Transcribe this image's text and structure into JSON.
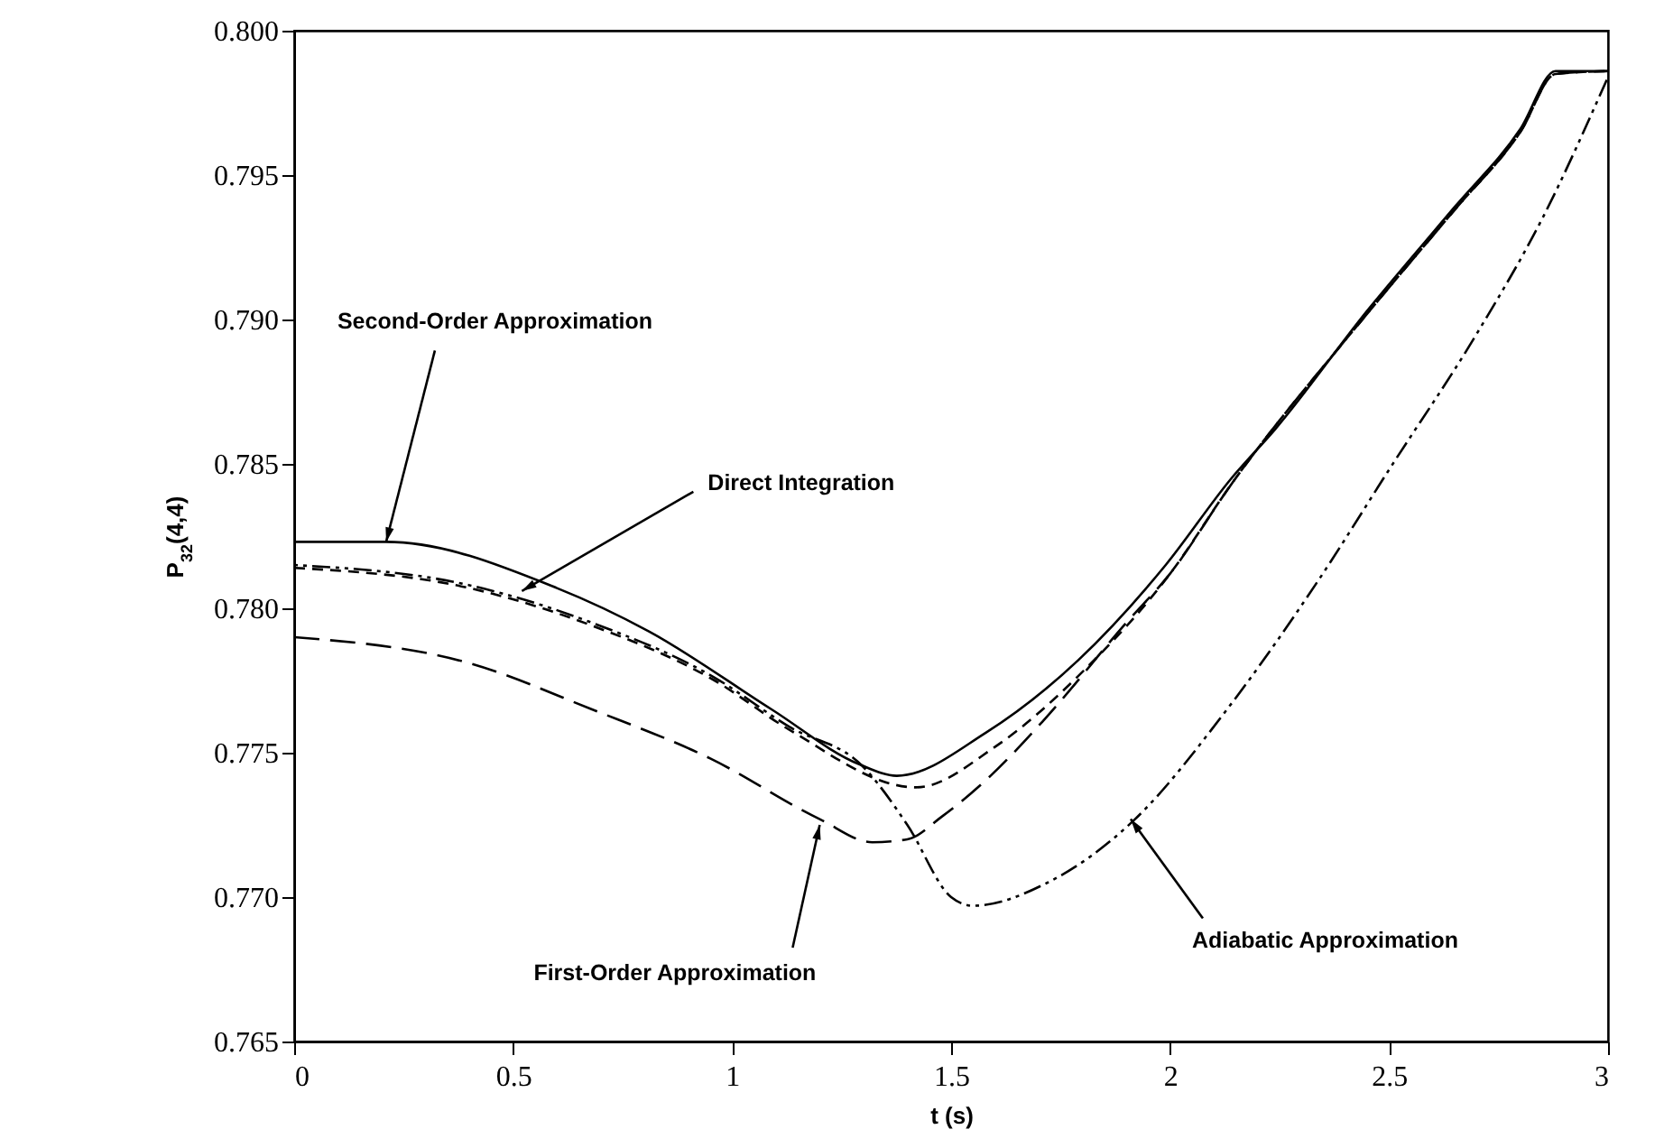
{
  "chart_data": {
    "type": "line",
    "xlabel": "t (s)",
    "ylabel": "P$_{32}$(4,4)",
    "xlim": [
      0,
      3
    ],
    "ylim": [
      0.765,
      0.8
    ],
    "xticks": [
      0,
      0.5,
      1,
      1.5,
      2,
      2.5,
      3
    ],
    "yticks": [
      {
        "value": 0.765,
        "label": "0.765"
      },
      {
        "value": 0.77,
        "label": "0.770"
      },
      {
        "value": 0.775,
        "label": "0.775"
      },
      {
        "value": 0.78,
        "label": "0.780"
      },
      {
        "value": 0.785,
        "label": "0.785"
      },
      {
        "value": 0.79,
        "label": "0.790"
      },
      {
        "value": 0.795,
        "label": "0.795"
      },
      {
        "value": 0.8,
        "label": "0.800"
      }
    ],
    "grid": false,
    "series": [
      {
        "color": "#000000",
        "line_style": "solid",
        "x": [
          0,
          0.21,
          0.6,
          0.81,
          1.09,
          1.29,
          1.376,
          1.58,
          1.79,
          1.99,
          2.14,
          2.24,
          2.45,
          2.65,
          2.8,
          2.88,
          3
        ],
        "values": [
          0.7823,
          0.7823,
          0.7807,
          0.7792,
          0.7765,
          0.7746,
          0.7742,
          0.7757,
          0.7782,
          0.7815,
          0.7845,
          0.7862,
          0.7903,
          0.7939,
          0.7966,
          0.7986,
          0.7986
        ]
      },
      {
        "color": "#000000",
        "line_style": "dashed",
        "x": [
          0,
          0.4,
          0.68,
          0.96,
          1.13,
          1.42,
          1.6,
          1.8,
          2.0,
          2.14,
          2.45,
          2.65,
          2.8,
          2.88,
          3
        ],
        "values": [
          0.7814,
          0.7807,
          0.7794,
          0.7775,
          0.7758,
          0.7738,
          0.7752,
          0.7778,
          0.7812,
          0.7843,
          0.7902,
          0.7938,
          0.7965,
          0.7985,
          0.7986
        ]
      },
      {
        "color": "#000000",
        "line_style": "dashed",
        "x": [
          0,
          0.4,
          0.68,
          0.95,
          1.2,
          1.32,
          1.4,
          1.48,
          1.59,
          1.71,
          1.9,
          2.0,
          2.14,
          2.45,
          2.65,
          2.8,
          2.88,
          3
        ],
        "values": [
          0.779,
          0.7781,
          0.7765,
          0.7748,
          0.7727,
          0.7719,
          0.772,
          0.7728,
          0.7742,
          0.7761,
          0.7795,
          0.7812,
          0.7843,
          0.7902,
          0.7938,
          0.7965,
          0.7985,
          0.7986
        ]
      },
      {
        "color": "#000000",
        "line_style": "dotted",
        "x": [
          0,
          0.4,
          0.68,
          0.96,
          1.13,
          1.3,
          1.4,
          1.5,
          1.55,
          1.72,
          1.92,
          2.13,
          2.34,
          2.5,
          2.7,
          2.85,
          3
        ],
        "values": [
          0.7815,
          0.7808,
          0.7795,
          0.7776,
          0.7759,
          0.7745,
          0.7725,
          0.77,
          0.7697,
          0.7705,
          0.7727,
          0.7765,
          0.781,
          0.7848,
          0.7895,
          0.7935,
          0.7984
        ]
      }
    ],
    "annotations": [
      {
        "text": "Second-Order Approximation",
        "x": 0.21,
        "y": 0.7823
      },
      {
        "text": "Direct Integration",
        "x": 0.52,
        "y": 0.7806
      },
      {
        "text": "First-Order Approximation",
        "x": 1.2,
        "y": 0.7725
      },
      {
        "text": "Adiabatic Approximation",
        "x": 1.91,
        "y": 0.7727
      }
    ]
  }
}
